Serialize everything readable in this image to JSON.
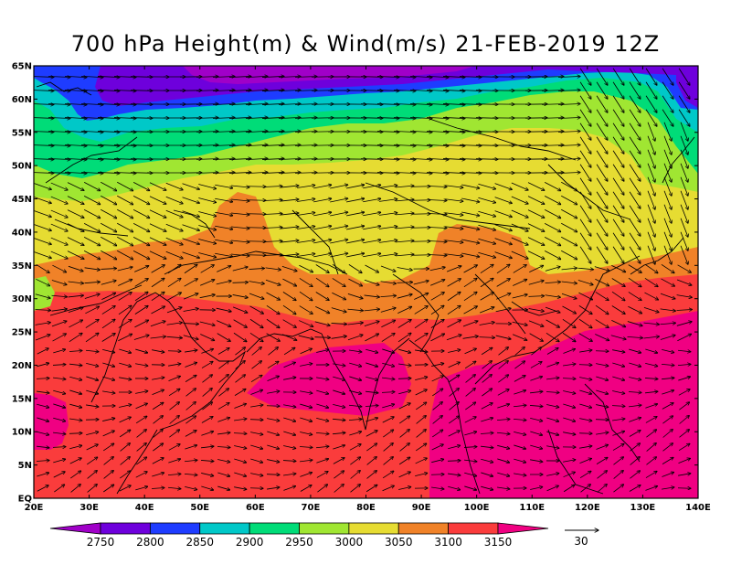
{
  "title": "700 hPa Height(m) & Wind(m/s) 21-FEB-2019 12Z",
  "lat_labels": [
    "65N",
    "60N",
    "55N",
    "50N",
    "45N",
    "40N",
    "35N",
    "30N",
    "25N",
    "20N",
    "15N",
    "10N",
    "5N",
    "EQ"
  ],
  "lon_labels": [
    "20E",
    "30E",
    "40E",
    "50E",
    "60E",
    "70E",
    "80E",
    "90E",
    "100E",
    "110E",
    "120E",
    "130E",
    "140E"
  ],
  "colorbar": {
    "levels": [
      "2750",
      "2800",
      "2850",
      "2900",
      "2950",
      "3000",
      "3050",
      "3100",
      "3150"
    ],
    "colors": [
      "#a000c8",
      "#6e00dc",
      "#1e3cff",
      "#00c8c8",
      "#00dc78",
      "#a0e632",
      "#e6dc32",
      "#f08228",
      "#fa3c3c",
      "#f00082"
    ]
  },
  "wind_key": {
    "label": "30"
  },
  "map_extent": {
    "lon": [
      20,
      140
    ],
    "lat": [
      0,
      65
    ]
  }
}
